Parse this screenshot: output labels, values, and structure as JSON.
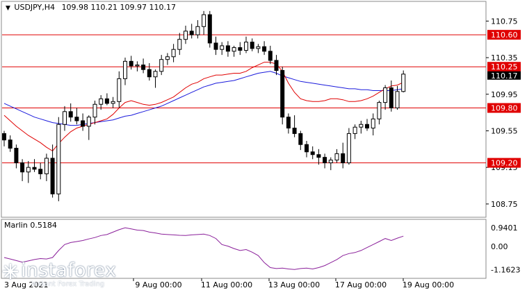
{
  "header": {
    "symbol": "USDJPY,H4",
    "ohlc": "109.98 110.21 109.97 110.17"
  },
  "oscillator": {
    "label": "Marlin 0.5184",
    "ticks": [
      "0.9401",
      "0.00",
      "-1.1623"
    ]
  },
  "price_axis": {
    "ticks": [
      "110.75",
      "110.35",
      "109.95",
      "109.55",
      "109.15",
      "108.75"
    ],
    "current_price_label": "110.17"
  },
  "levels": [
    {
      "label": "110.60",
      "value": 110.6
    },
    {
      "label": "110.25",
      "value": 110.25
    },
    {
      "label": "109.80",
      "value": 109.8
    },
    {
      "label": "109.20",
      "value": 109.2
    }
  ],
  "time_axis": {
    "first_label": "3 Aug 2021",
    "labels": [
      "9 Aug 00:00",
      "11 Aug 00:00",
      "13 Aug 00:00",
      "17 Aug 00:00",
      "19 Aug 00:00"
    ]
  },
  "watermark": {
    "brand": "instaforex",
    "tagline": "Instant Forex Trading"
  },
  "colors": {
    "bull_candle": "#ffffff",
    "bear_candle": "#000000",
    "level_line": "#e00000",
    "level_label_bg": "#e00000",
    "ma_fast": "#e00000",
    "ma_slow": "#1a1adc",
    "oscillator": "#8a1f9a",
    "current_price_bg": "#000000"
  },
  "chart_data": {
    "type": "candlestick",
    "title": "USDJPY,H4",
    "ylim": [
      108.62,
      110.95
    ],
    "candles": [
      [
        109.52,
        109.55,
        109.38,
        109.45
      ],
      [
        109.45,
        109.5,
        109.32,
        109.36
      ],
      [
        109.36,
        109.4,
        109.14,
        109.2
      ],
      [
        109.2,
        109.24,
        109.0,
        109.1
      ],
      [
        109.1,
        109.22,
        108.98,
        109.15
      ],
      [
        109.15,
        109.24,
        109.1,
        109.13
      ],
      [
        109.13,
        109.2,
        109.02,
        109.08
      ],
      [
        109.08,
        109.3,
        109.0,
        109.25
      ],
      [
        109.25,
        109.4,
        108.82,
        108.86
      ],
      [
        108.86,
        109.7,
        108.78,
        109.62
      ],
      [
        109.62,
        109.82,
        109.55,
        109.76
      ],
      [
        109.76,
        109.85,
        109.65,
        109.7
      ],
      [
        109.7,
        109.8,
        109.62,
        109.66
      ],
      [
        109.66,
        109.74,
        109.55,
        109.6
      ],
      [
        109.6,
        109.72,
        109.45,
        109.7
      ],
      [
        109.7,
        109.88,
        109.62,
        109.84
      ],
      [
        109.84,
        109.94,
        109.78,
        109.9
      ],
      [
        109.9,
        109.96,
        109.83,
        109.85
      ],
      [
        109.85,
        109.92,
        109.8,
        109.87
      ],
      [
        109.87,
        110.2,
        109.8,
        110.12
      ],
      [
        110.12,
        110.35,
        110.05,
        110.31
      ],
      [
        110.31,
        110.37,
        110.22,
        110.26
      ],
      [
        110.26,
        110.31,
        110.2,
        110.27
      ],
      [
        110.27,
        110.34,
        110.18,
        110.22
      ],
      [
        110.22,
        110.29,
        110.1,
        110.14
      ],
      [
        110.14,
        110.22,
        110.02,
        110.2
      ],
      [
        110.2,
        110.38,
        110.16,
        110.33
      ],
      [
        110.33,
        110.4,
        110.27,
        110.36
      ],
      [
        110.36,
        110.5,
        110.3,
        110.44
      ],
      [
        110.44,
        110.62,
        110.38,
        110.55
      ],
      [
        110.55,
        110.7,
        110.5,
        110.64
      ],
      [
        110.64,
        110.72,
        110.56,
        110.6
      ],
      [
        110.6,
        110.76,
        110.56,
        110.69
      ],
      [
        110.69,
        110.86,
        110.6,
        110.82
      ],
      [
        110.82,
        110.86,
        110.46,
        110.51
      ],
      [
        110.51,
        110.58,
        110.38,
        110.44
      ],
      [
        110.44,
        110.52,
        110.38,
        110.48
      ],
      [
        110.48,
        110.53,
        110.36,
        110.42
      ],
      [
        110.42,
        110.48,
        110.36,
        110.46
      ],
      [
        110.46,
        110.52,
        110.38,
        110.43
      ],
      [
        110.43,
        110.58,
        110.4,
        110.52
      ],
      [
        110.52,
        110.56,
        110.42,
        110.45
      ],
      [
        110.45,
        110.5,
        110.4,
        110.47
      ],
      [
        110.47,
        110.53,
        110.38,
        110.42
      ],
      [
        110.42,
        110.48,
        110.28,
        110.32
      ],
      [
        110.32,
        110.38,
        110.16,
        110.21
      ],
      [
        110.21,
        110.25,
        109.62,
        109.7
      ],
      [
        109.7,
        109.74,
        109.52,
        109.58
      ],
      [
        109.58,
        109.72,
        109.48,
        109.52
      ],
      [
        109.52,
        109.55,
        109.34,
        109.4
      ],
      [
        109.4,
        109.44,
        109.26,
        109.32
      ],
      [
        109.32,
        109.38,
        109.24,
        109.29
      ],
      [
        109.29,
        109.35,
        109.18,
        109.26
      ],
      [
        109.26,
        109.3,
        109.14,
        109.2
      ],
      [
        109.2,
        109.26,
        109.12,
        109.23
      ],
      [
        109.23,
        109.35,
        109.2,
        109.3
      ],
      [
        109.3,
        109.42,
        109.14,
        109.2
      ],
      [
        109.2,
        109.58,
        109.18,
        109.52
      ],
      [
        109.52,
        109.62,
        109.46,
        109.59
      ],
      [
        109.59,
        109.66,
        109.52,
        109.62
      ],
      [
        109.62,
        109.68,
        109.55,
        109.58
      ],
      [
        109.58,
        109.74,
        109.5,
        109.68
      ],
      [
        109.68,
        109.88,
        109.62,
        109.86
      ],
      [
        109.86,
        110.05,
        109.78,
        110.02
      ],
      [
        110.02,
        110.1,
        109.76,
        109.8
      ],
      [
        109.8,
        110.04,
        109.78,
        109.98
      ],
      [
        109.98,
        110.21,
        109.97,
        110.17
      ]
    ],
    "ma_fast": [
      109.72,
      109.66,
      109.6,
      109.55,
      109.5,
      109.46,
      109.42,
      109.37,
      109.33,
      109.41,
      109.48,
      109.54,
      109.58,
      109.6,
      109.62,
      109.64,
      109.66,
      109.68,
      109.73,
      109.8,
      109.86,
      109.88,
      109.86,
      109.84,
      109.83,
      109.84,
      109.86,
      109.89,
      109.92,
      109.97,
      110.02,
      110.06,
      110.08,
      110.12,
      110.14,
      110.16,
      110.16,
      110.17,
      110.18,
      110.18,
      110.2,
      110.24,
      110.27,
      110.3,
      110.3,
      110.28,
      110.2,
      110.07,
      109.97,
      109.9,
      109.88,
      109.87,
      109.87,
      109.88,
      109.9,
      109.9,
      109.89,
      109.87,
      109.87,
      109.88,
      109.9,
      109.93,
      109.97,
      110.01,
      110.04,
      110.05,
      110.08
    ],
    "ma_slow": [
      109.85,
      109.82,
      109.79,
      109.76,
      109.73,
      109.7,
      109.68,
      109.66,
      109.64,
      109.63,
      109.62,
      109.61,
      109.61,
      109.62,
      109.63,
      109.64,
      109.65,
      109.66,
      109.67,
      109.69,
      109.71,
      109.72,
      109.74,
      109.76,
      109.78,
      109.8,
      109.82,
      109.85,
      109.88,
      109.91,
      109.94,
      109.97,
      110.0,
      110.03,
      110.05,
      110.07,
      110.08,
      110.09,
      110.1,
      110.12,
      110.14,
      110.16,
      110.18,
      110.19,
      110.2,
      110.18,
      110.15,
      110.13,
      110.11,
      110.09,
      110.08,
      110.07,
      110.06,
      110.05,
      110.04,
      110.03,
      110.02,
      110.01,
      110.01,
      110.0,
      110.0,
      109.99,
      109.99,
      109.99,
      109.99,
      110.0,
      110.01
    ],
    "marlin": [
      -0.55,
      -0.62,
      -0.7,
      -0.78,
      -0.72,
      -0.65,
      -0.6,
      -0.62,
      -0.55,
      -0.2,
      0.1,
      0.2,
      0.25,
      0.3,
      0.38,
      0.45,
      0.55,
      0.6,
      0.72,
      0.84,
      0.94,
      0.88,
      0.82,
      0.8,
      0.72,
      0.68,
      0.62,
      0.6,
      0.58,
      0.56,
      0.55,
      0.58,
      0.6,
      0.62,
      0.55,
      0.4,
      0.1,
      0.02,
      -0.1,
      -0.2,
      -0.15,
      -0.28,
      -0.45,
      -0.8,
      -1.05,
      -1.1,
      -1.08,
      -1.12,
      -1.15,
      -1.1,
      -1.08,
      -1.12,
      -1.05,
      -0.95,
      -0.8,
      -0.65,
      -0.45,
      -0.35,
      -0.3,
      -0.2,
      -0.05,
      0.1,
      0.25,
      0.4,
      0.3,
      0.42,
      0.52
    ],
    "osc_ylim": [
      -1.45,
      1.15
    ]
  }
}
